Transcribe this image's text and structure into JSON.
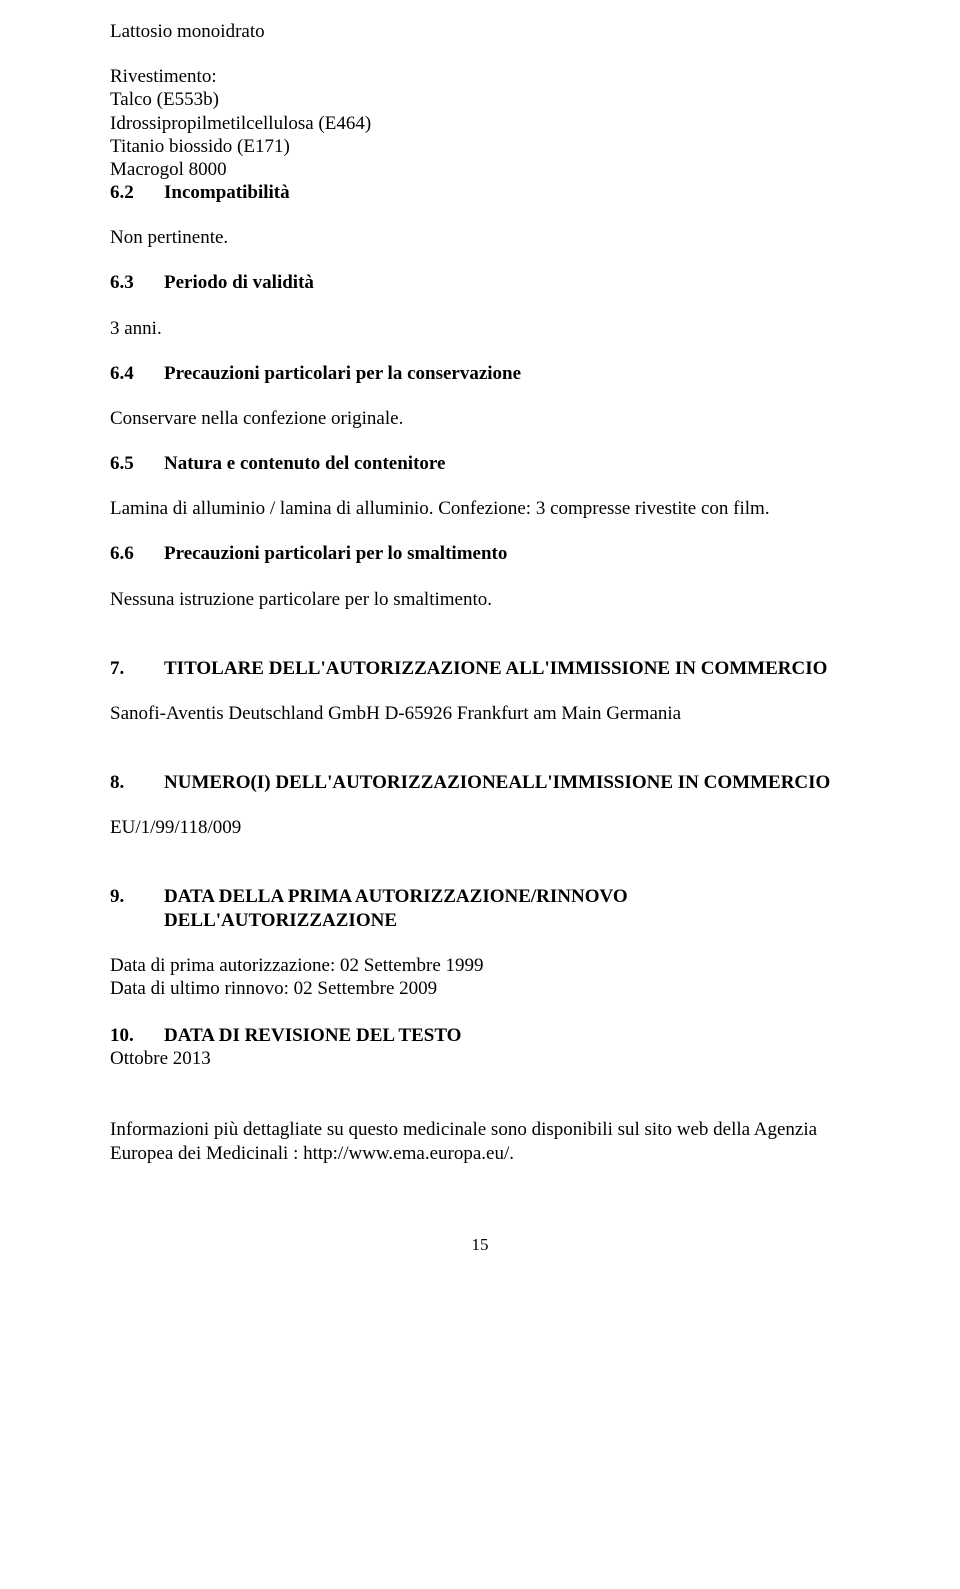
{
  "intro": {
    "l1": "Lattosio monoidrato"
  },
  "rivestimento": {
    "title": "Rivestimento:",
    "items": [
      "Talco (E553b)",
      "Idrossipropilmetilcellulosa (E464)",
      "Titanio biossido (E171)",
      "Macrogol 8000"
    ]
  },
  "s62": {
    "num": "6.2",
    "title": "Incompatibilità",
    "body": "Non pertinente."
  },
  "s63": {
    "num": "6.3",
    "title": "Periodo di validità",
    "body": "3 anni."
  },
  "s64": {
    "num": "6.4",
    "title": "Precauzioni particolari per la conservazione",
    "body": "Conservare nella confezione originale."
  },
  "s65": {
    "num": "6.5",
    "title": "Natura e contenuto del contenitore",
    "body": "Lamina di alluminio / lamina di alluminio. Confezione: 3 compresse rivestite con film."
  },
  "s66": {
    "num": "6.6",
    "title": "Precauzioni particolari per lo smaltimento",
    "body": "Nessuna istruzione particolare per lo smaltimento."
  },
  "s7": {
    "num": "7.",
    "title": "TITOLARE DELL'AUTORIZZAZIONE ALL'IMMISSIONE IN COMMERCIO",
    "body": "Sanofi-Aventis Deutschland GmbH D-65926 Frankfurt am Main Germania"
  },
  "s8": {
    "num": "8.",
    "title": "NUMERO(I) DELL'AUTORIZZAZIONEALL'IMMISSIONE IN COMMERCIO",
    "body": "EU/1/99/118/009"
  },
  "s9": {
    "num": "9.",
    "title": "DATA DELLA PRIMA AUTORIZZAZIONE/RINNOVO DELL'AUTORIZZAZIONE",
    "body1": "Data di prima autorizzazione: 02 Settembre 1999",
    "body2": "Data di ultimo rinnovo: 02 Settembre 2009"
  },
  "s10": {
    "num": "10.",
    "title": "DATA DI REVISIONE DEL TESTO",
    "body": "Ottobre 2013"
  },
  "closing": {
    "text": "Informazioni più dettagliate su questo medicinale sono disponibili sul sito web della Agenzia Europea dei Medicinali : http://www.ema.europa.eu/."
  },
  "footer": {
    "page": "15"
  }
}
